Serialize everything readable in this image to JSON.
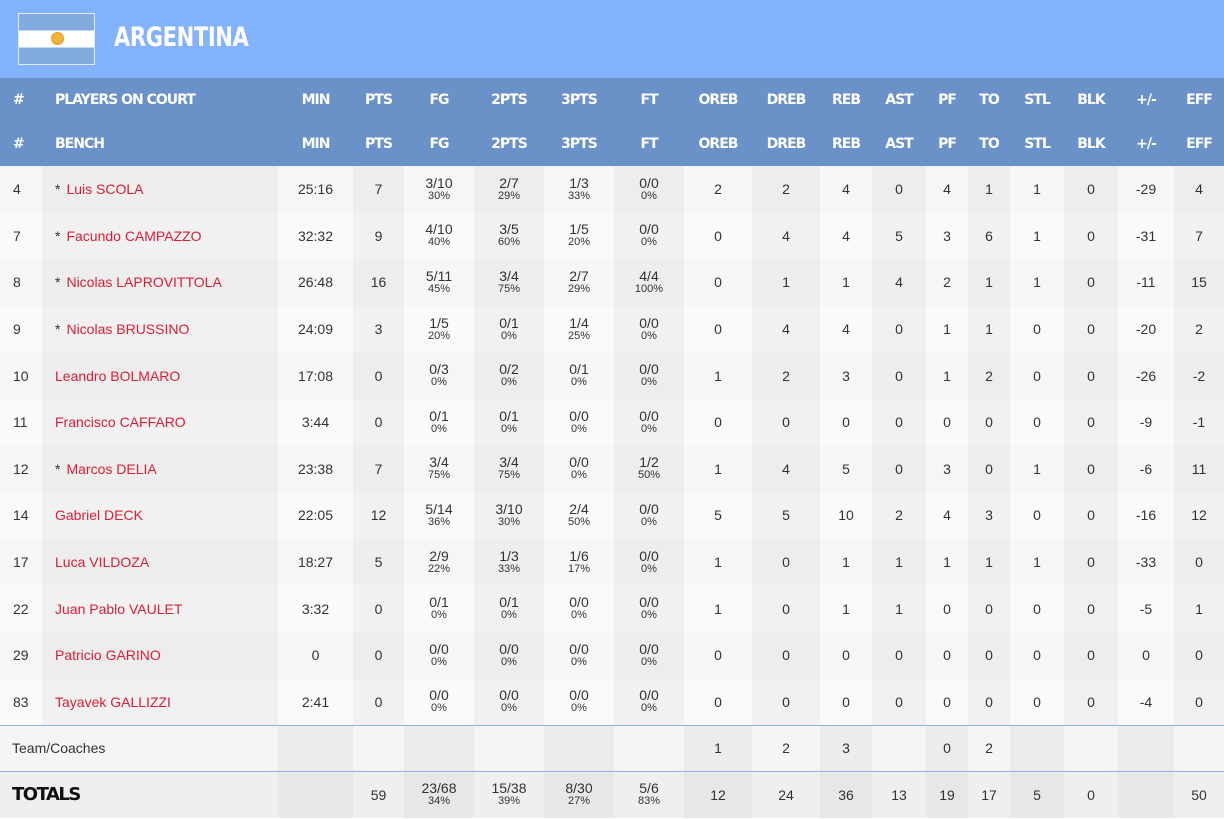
{
  "team": {
    "name": "ARGENTINA",
    "flag_colors": [
      "#82acdd",
      "#ffffff",
      "#f3b23a"
    ]
  },
  "colors": {
    "banner": "#84b3fe",
    "header": "#6b91c9",
    "player_name": "#e0203a"
  },
  "headers": {
    "row1": [
      "#",
      "PLAYERS ON COURT",
      "MIN",
      "PTS",
      "FG",
      "2PTS",
      "3PTS",
      "FT",
      "OREB",
      "DREB",
      "REB",
      "AST",
      "PF",
      "TO",
      "STL",
      "BLK",
      "+/-",
      "EFF"
    ],
    "row2": [
      "#",
      "BENCH",
      "MIN",
      "PTS",
      "FG",
      "2PTS",
      "3PTS",
      "FT",
      "OREB",
      "DREB",
      "REB",
      "AST",
      "PF",
      "TO",
      "STL",
      "BLK",
      "+/-",
      "EFF"
    ]
  },
  "players": [
    {
      "no": "4",
      "starter": "*",
      "name": "Luis SCOLA",
      "min": "25:16",
      "pts": "7",
      "fg": [
        "3/10",
        "30%"
      ],
      "p2": [
        "2/7",
        "29%"
      ],
      "p3": [
        "1/3",
        "33%"
      ],
      "ft": [
        "0/0",
        "0%"
      ],
      "oreb": "2",
      "dreb": "2",
      "reb": "4",
      "ast": "0",
      "pf": "4",
      "to": "1",
      "stl": "1",
      "blk": "0",
      "pm": "-29",
      "eff": "4"
    },
    {
      "no": "7",
      "starter": "*",
      "name": "Facundo CAMPAZZO",
      "min": "32:32",
      "pts": "9",
      "fg": [
        "4/10",
        "40%"
      ],
      "p2": [
        "3/5",
        "60%"
      ],
      "p3": [
        "1/5",
        "20%"
      ],
      "ft": [
        "0/0",
        "0%"
      ],
      "oreb": "0",
      "dreb": "4",
      "reb": "4",
      "ast": "5",
      "pf": "3",
      "to": "6",
      "stl": "1",
      "blk": "0",
      "pm": "-31",
      "eff": "7"
    },
    {
      "no": "8",
      "starter": "*",
      "name": "Nicolas LAPROVITTOLA",
      "min": "26:48",
      "pts": "16",
      "fg": [
        "5/11",
        "45%"
      ],
      "p2": [
        "3/4",
        "75%"
      ],
      "p3": [
        "2/7",
        "29%"
      ],
      "ft": [
        "4/4",
        "100%"
      ],
      "oreb": "0",
      "dreb": "1",
      "reb": "1",
      "ast": "4",
      "pf": "2",
      "to": "1",
      "stl": "1",
      "blk": "0",
      "pm": "-11",
      "eff": "15"
    },
    {
      "no": "9",
      "starter": "*",
      "name": "Nicolas BRUSSINO",
      "min": "24:09",
      "pts": "3",
      "fg": [
        "1/5",
        "20%"
      ],
      "p2": [
        "0/1",
        "0%"
      ],
      "p3": [
        "1/4",
        "25%"
      ],
      "ft": [
        "0/0",
        "0%"
      ],
      "oreb": "0",
      "dreb": "4",
      "reb": "4",
      "ast": "0",
      "pf": "1",
      "to": "1",
      "stl": "0",
      "blk": "0",
      "pm": "-20",
      "eff": "2"
    },
    {
      "no": "10",
      "starter": "",
      "name": "Leandro BOLMARO",
      "min": "17:08",
      "pts": "0",
      "fg": [
        "0/3",
        "0%"
      ],
      "p2": [
        "0/2",
        "0%"
      ],
      "p3": [
        "0/1",
        "0%"
      ],
      "ft": [
        "0/0",
        "0%"
      ],
      "oreb": "1",
      "dreb": "2",
      "reb": "3",
      "ast": "0",
      "pf": "1",
      "to": "2",
      "stl": "0",
      "blk": "0",
      "pm": "-26",
      "eff": "-2"
    },
    {
      "no": "11",
      "starter": "",
      "name": "Francisco CAFFARO",
      "min": "3:44",
      "pts": "0",
      "fg": [
        "0/1",
        "0%"
      ],
      "p2": [
        "0/1",
        "0%"
      ],
      "p3": [
        "0/0",
        "0%"
      ],
      "ft": [
        "0/0",
        "0%"
      ],
      "oreb": "0",
      "dreb": "0",
      "reb": "0",
      "ast": "0",
      "pf": "0",
      "to": "0",
      "stl": "0",
      "blk": "0",
      "pm": "-9",
      "eff": "-1"
    },
    {
      "no": "12",
      "starter": "*",
      "name": "Marcos DELIA",
      "min": "23:38",
      "pts": "7",
      "fg": [
        "3/4",
        "75%"
      ],
      "p2": [
        "3/4",
        "75%"
      ],
      "p3": [
        "0/0",
        "0%"
      ],
      "ft": [
        "1/2",
        "50%"
      ],
      "oreb": "1",
      "dreb": "4",
      "reb": "5",
      "ast": "0",
      "pf": "3",
      "to": "0",
      "stl": "1",
      "blk": "0",
      "pm": "-6",
      "eff": "11"
    },
    {
      "no": "14",
      "starter": "",
      "name": "Gabriel DECK",
      "min": "22:05",
      "pts": "12",
      "fg": [
        "5/14",
        "36%"
      ],
      "p2": [
        "3/10",
        "30%"
      ],
      "p3": [
        "2/4",
        "50%"
      ],
      "ft": [
        "0/0",
        "0%"
      ],
      "oreb": "5",
      "dreb": "5",
      "reb": "10",
      "ast": "2",
      "pf": "4",
      "to": "3",
      "stl": "0",
      "blk": "0",
      "pm": "-16",
      "eff": "12"
    },
    {
      "no": "17",
      "starter": "",
      "name": "Luca VILDOZA",
      "min": "18:27",
      "pts": "5",
      "fg": [
        "2/9",
        "22%"
      ],
      "p2": [
        "1/3",
        "33%"
      ],
      "p3": [
        "1/6",
        "17%"
      ],
      "ft": [
        "0/0",
        "0%"
      ],
      "oreb": "1",
      "dreb": "0",
      "reb": "1",
      "ast": "1",
      "pf": "1",
      "to": "1",
      "stl": "1",
      "blk": "0",
      "pm": "-33",
      "eff": "0"
    },
    {
      "no": "22",
      "starter": "",
      "name": "Juan Pablo VAULET",
      "min": "3:32",
      "pts": "0",
      "fg": [
        "0/1",
        "0%"
      ],
      "p2": [
        "0/1",
        "0%"
      ],
      "p3": [
        "0/0",
        "0%"
      ],
      "ft": [
        "0/0",
        "0%"
      ],
      "oreb": "1",
      "dreb": "0",
      "reb": "1",
      "ast": "1",
      "pf": "0",
      "to": "0",
      "stl": "0",
      "blk": "0",
      "pm": "-5",
      "eff": "1"
    },
    {
      "no": "29",
      "starter": "",
      "name": "Patricio GARINO",
      "min": "0",
      "pts": "0",
      "fg": [
        "0/0",
        "0%"
      ],
      "p2": [
        "0/0",
        "0%"
      ],
      "p3": [
        "0/0",
        "0%"
      ],
      "ft": [
        "0/0",
        "0%"
      ],
      "oreb": "0",
      "dreb": "0",
      "reb": "0",
      "ast": "0",
      "pf": "0",
      "to": "0",
      "stl": "0",
      "blk": "0",
      "pm": "0",
      "eff": "0"
    },
    {
      "no": "83",
      "starter": "",
      "name": "Tayavek GALLIZZI",
      "min": "2:41",
      "pts": "0",
      "fg": [
        "0/0",
        "0%"
      ],
      "p2": [
        "0/0",
        "0%"
      ],
      "p3": [
        "0/0",
        "0%"
      ],
      "ft": [
        "0/0",
        "0%"
      ],
      "oreb": "0",
      "dreb": "0",
      "reb": "0",
      "ast": "0",
      "pf": "0",
      "to": "0",
      "stl": "0",
      "blk": "0",
      "pm": "-4",
      "eff": "0"
    }
  ],
  "team_row": {
    "label": "Team/Coaches",
    "oreb": "1",
    "dreb": "2",
    "reb": "3",
    "ast": "",
    "pf": "0",
    "to": "2"
  },
  "totals": {
    "label": "TOTALS",
    "pts": "59",
    "fg": [
      "23/68",
      "34%"
    ],
    "p2": [
      "15/38",
      "39%"
    ],
    "p3": [
      "8/30",
      "27%"
    ],
    "ft": [
      "5/6",
      "83%"
    ],
    "oreb": "12",
    "dreb": "24",
    "reb": "36",
    "ast": "13",
    "pf": "19",
    "to": "17",
    "stl": "5",
    "blk": "0",
    "pm": "",
    "eff": "50"
  }
}
